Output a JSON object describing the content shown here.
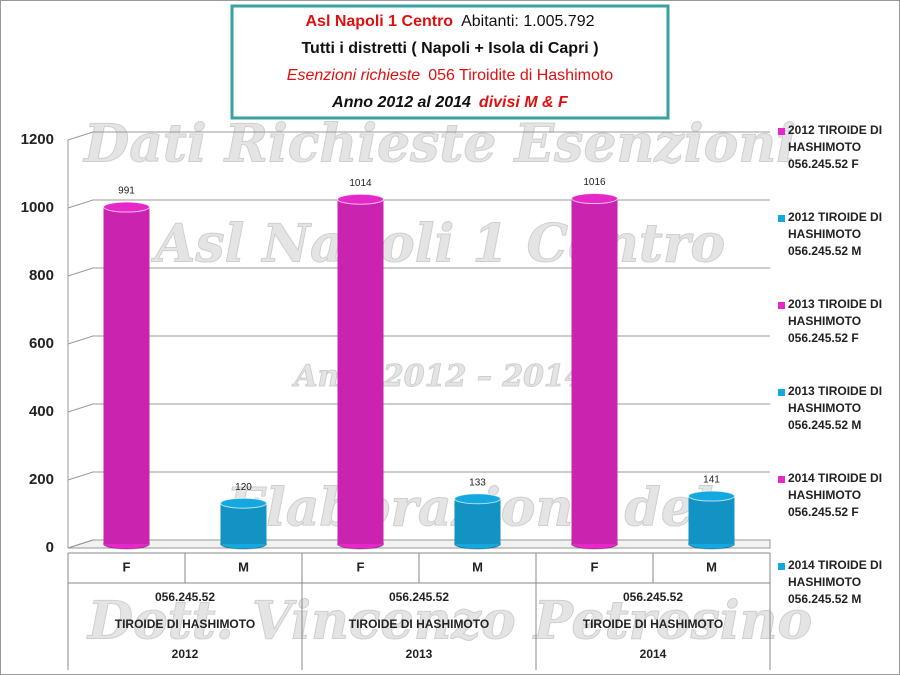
{
  "chart_data": {
    "type": "bar",
    "title_box": {
      "line1a": "Asl Napoli 1 Centro",
      "line1b": "Abitanti: 1.005.792",
      "line2": "Tutti i distretti ( Napoli + Isola di Capri )",
      "line3a": "Esenzioni richieste",
      "line3b": "056 Tiroidite di Hashimoto",
      "line4a": "Anno 2012 al 2014",
      "line4b": "divisi M & F"
    },
    "watermarks": [
      "Dati Richieste Esenzioni",
      "Asl Napoli 1 Centro",
      "Anni 2012 – 2014",
      "Elaborazione del",
      "Dott. Vincenzo Petrosino"
    ],
    "categories": [
      "F",
      "M",
      "F",
      "M",
      "F",
      "M"
    ],
    "groups": [
      {
        "code": "056.245.52",
        "name": "TIROIDE DI HASHIMOTO",
        "year": "2012"
      },
      {
        "code": "056.245.52",
        "name": "TIROIDE DI HASHIMOTO",
        "year": "2013"
      },
      {
        "code": "056.245.52",
        "name": "TIROIDE DI HASHIMOTO",
        "year": "2014"
      }
    ],
    "series": [
      {
        "name": "2012 TIROIDE DI HASHIMOTO 056.245.52 F",
        "color": "#e628c8",
        "values": [
          991,
          null,
          null,
          null,
          null,
          null
        ]
      },
      {
        "name": "2012 TIROIDE DI HASHIMOTO 056.245.52 M",
        "color": "#14a8e0",
        "values": [
          null,
          120,
          null,
          null,
          null,
          null
        ]
      },
      {
        "name": "2013 TIROIDE DI HASHIMOTO 056.245.52 F",
        "color": "#e628c8",
        "values": [
          null,
          null,
          1014,
          null,
          null,
          null
        ]
      },
      {
        "name": "2013 TIROIDE DI HASHIMOTO 056.245.52 M",
        "color": "#14a8e0",
        "values": [
          null,
          null,
          null,
          133,
          null,
          null
        ]
      },
      {
        "name": "2014 TIROIDE DI HASHIMOTO 056.245.52 F",
        "color": "#e628c8",
        "values": [
          null,
          null,
          null,
          null,
          1016,
          null
        ]
      },
      {
        "name": "2014 TIROIDE DI HASHIMOTO 056.245.52 M",
        "color": "#14a8e0",
        "values": [
          null,
          null,
          null,
          null,
          null,
          141
        ]
      }
    ],
    "ylim": [
      0,
      1200
    ],
    "yticks": [
      0,
      200,
      400,
      600,
      800,
      1000,
      1200
    ],
    "grid": true,
    "legend": "right"
  }
}
